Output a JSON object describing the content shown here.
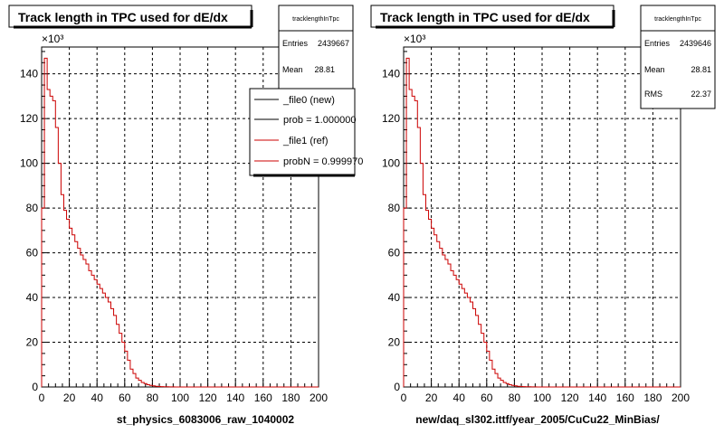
{
  "chart_data": [
    {
      "type": "histogram",
      "title": "Track length in TPC used for dE/dx",
      "xlabel": "st_physics_6083006_raw_1040002",
      "ylabel": "",
      "y_multiplier_label": "×10³",
      "xlim": [
        0,
        200
      ],
      "ylim": [
        0,
        152
      ],
      "x_ticks": [
        0,
        20,
        40,
        60,
        80,
        100,
        120,
        140,
        160,
        180,
        200
      ],
      "y_ticks": [
        0,
        20,
        40,
        60,
        80,
        100,
        120,
        140
      ],
      "grid": true,
      "stats": {
        "name": "tracklengthInTpc",
        "entries_label": "Entries",
        "entries": "2439667",
        "mean_label": "Mean",
        "mean": "28.81"
      },
      "legend_position": "top-right",
      "legend": [
        {
          "label": "_file0 (new)",
          "color": "#000000"
        },
        {
          "label": "prob = 1.000000",
          "color": "#000000"
        },
        {
          "label": "_file1 (ref)",
          "color": "#cc0000"
        },
        {
          "label": "probN = 0.999970",
          "color": "#cc0000"
        }
      ],
      "series": [
        {
          "color": "#cc0000",
          "bin_width": 2,
          "bin_start": 0,
          "values": [
            80,
            147,
            133,
            130,
            128,
            116,
            100,
            86,
            79,
            75,
            71,
            68,
            65,
            62,
            59,
            57,
            55,
            52,
            50,
            48,
            46,
            44,
            42,
            40,
            38,
            35,
            32,
            28,
            24,
            20,
            16,
            12,
            8,
            6,
            4,
            3,
            2,
            1.5,
            1,
            0.7,
            0.5,
            0.3,
            0.2,
            0.15,
            0.1,
            0.08,
            0.05,
            0.03,
            0.02,
            0.01,
            0,
            0,
            0,
            0,
            0,
            0,
            0,
            0,
            0,
            0,
            0,
            0,
            0,
            0,
            0,
            0,
            0,
            0,
            0,
            0,
            0,
            0,
            0,
            0,
            0,
            0,
            0,
            0,
            0,
            0,
            0,
            0,
            0,
            0,
            0,
            0,
            0,
            0,
            0,
            0,
            0,
            0,
            0,
            0,
            0,
            0,
            0,
            0,
            0,
            0
          ]
        }
      ]
    },
    {
      "type": "histogram",
      "title": "Track length in TPC used for dE/dx",
      "xlabel": "new/daq_sl302.ittf/year_2005/CuCu22_MinBias/",
      "ylabel": "",
      "y_multiplier_label": "×10³",
      "xlim": [
        0,
        200
      ],
      "ylim": [
        0,
        152
      ],
      "x_ticks": [
        0,
        20,
        40,
        60,
        80,
        100,
        120,
        140,
        160,
        180,
        200
      ],
      "y_ticks": [
        0,
        20,
        40,
        60,
        80,
        100,
        120,
        140
      ],
      "grid": true,
      "stats": {
        "name": "tracklengthInTpc",
        "entries_label": "Entries",
        "entries": "2439646",
        "mean_label": "Mean",
        "mean": "28.81",
        "rms_label": "RMS",
        "rms": "22.37"
      },
      "legend": [],
      "series": [
        {
          "color": "#cc0000",
          "bin_width": 2,
          "bin_start": 0,
          "values": [
            80,
            147,
            133,
            130,
            128,
            116,
            100,
            86,
            79,
            75,
            71,
            68,
            65,
            62,
            59,
            57,
            55,
            52,
            50,
            48,
            46,
            44,
            42,
            40,
            38,
            35,
            32,
            28,
            24,
            20,
            16,
            12,
            8,
            6,
            4,
            3,
            2,
            1.5,
            1,
            0.7,
            0.5,
            0.3,
            0.2,
            0.15,
            0.1,
            0.08,
            0.05,
            0.03,
            0.02,
            0.01,
            0,
            0,
            0,
            0,
            0,
            0,
            0,
            0,
            0,
            0,
            0,
            0,
            0,
            0,
            0,
            0,
            0,
            0,
            0,
            0,
            0,
            0,
            0,
            0,
            0,
            0,
            0,
            0,
            0,
            0,
            0,
            0,
            0,
            0,
            0,
            0,
            0,
            0,
            0,
            0,
            0,
            0,
            0,
            0,
            0,
            0,
            0,
            0,
            0,
            0
          ]
        }
      ]
    }
  ]
}
